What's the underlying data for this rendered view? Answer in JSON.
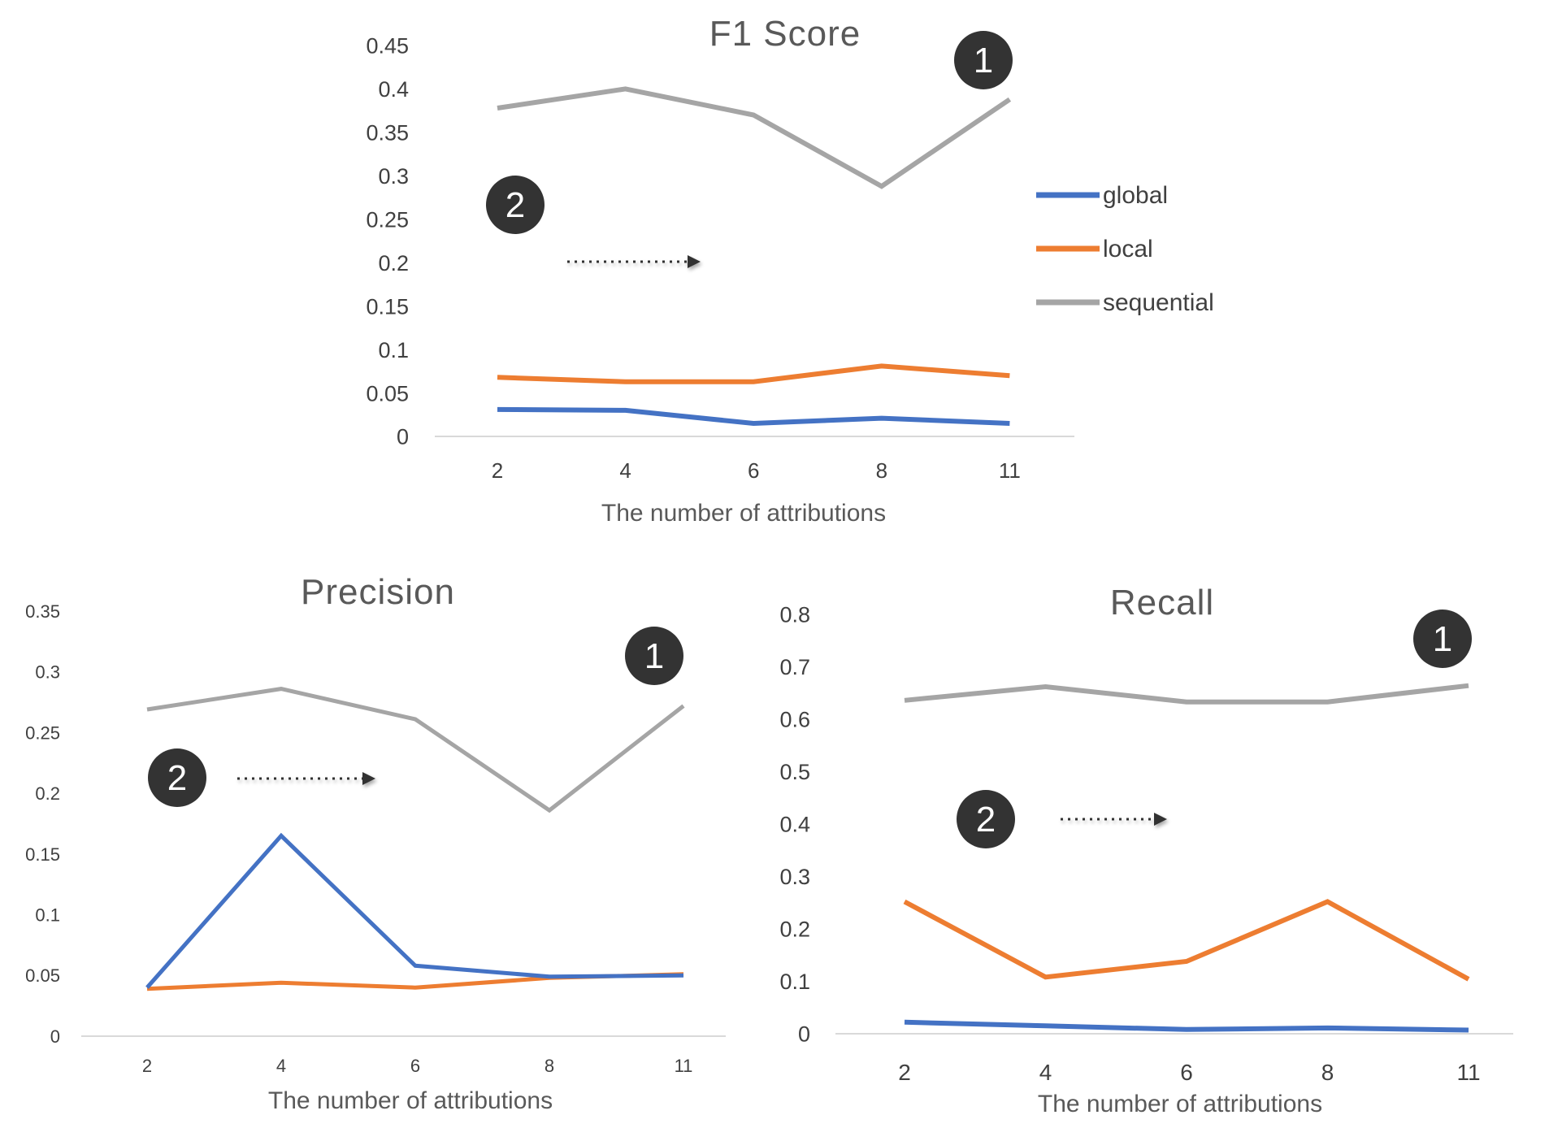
{
  "colors": {
    "global": "#4472C4",
    "local": "#ED7D31",
    "sequential": "#A5A5A5",
    "axis": "#D9D9D9",
    "badge": "#333333"
  },
  "legend": {
    "items": [
      {
        "label": "global",
        "color": "#4472C4"
      },
      {
        "label": "local",
        "color": "#ED7D31"
      },
      {
        "label": "sequential",
        "color": "#A5A5A5"
      }
    ]
  },
  "chart_data": [
    {
      "type": "line",
      "title": "F1 Score",
      "xlabel": "The number of attributions",
      "ylabel": "",
      "categories": [
        "2",
        "4",
        "6",
        "8",
        "11"
      ],
      "ylim": [
        0,
        0.45
      ],
      "y_ticks": [
        "0",
        "0.05",
        "0.1",
        "0.15",
        "0.2",
        "0.25",
        "0.3",
        "0.35",
        "0.4",
        "0.45"
      ],
      "series": [
        {
          "name": "global",
          "values": [
            0.031,
            0.03,
            0.015,
            0.021,
            0.015
          ]
        },
        {
          "name": "local",
          "values": [
            0.068,
            0.063,
            0.063,
            0.081,
            0.07
          ]
        },
        {
          "name": "sequential",
          "values": [
            0.378,
            0.4,
            0.37,
            0.288,
            0.388
          ]
        }
      ],
      "grid": false,
      "legend": "right",
      "badges": [
        "1",
        "2"
      ]
    },
    {
      "type": "line",
      "title": "Precision",
      "xlabel": "The number of attributions",
      "ylabel": "",
      "categories": [
        "2",
        "4",
        "6",
        "8",
        "11"
      ],
      "ylim": [
        0,
        0.35
      ],
      "y_ticks": [
        "0",
        "0.05",
        "0.1",
        "0.15",
        "0.2",
        "0.25",
        "0.3",
        "0.35"
      ],
      "series": [
        {
          "name": "global",
          "values": [
            0.04,
            0.165,
            0.058,
            0.049,
            0.05
          ]
        },
        {
          "name": "local",
          "values": [
            0.039,
            0.044,
            0.04,
            0.048,
            0.051
          ]
        },
        {
          "name": "sequential",
          "values": [
            0.269,
            0.286,
            0.261,
            0.186,
            0.272
          ]
        }
      ],
      "grid": false,
      "badges": [
        "1",
        "2"
      ]
    },
    {
      "type": "line",
      "title": "Recall",
      "xlabel": "The number of attributions",
      "ylabel": "",
      "categories": [
        "2",
        "4",
        "6",
        "8",
        "11"
      ],
      "ylim": [
        0,
        0.8
      ],
      "y_ticks": [
        "0",
        "0.1",
        "0.2",
        "0.3",
        "0.4",
        "0.5",
        "0.6",
        "0.7",
        "0.8"
      ],
      "series": [
        {
          "name": "global",
          "values": [
            0.022,
            0.015,
            0.008,
            0.011,
            0.007
          ]
        },
        {
          "name": "local",
          "values": [
            0.252,
            0.108,
            0.138,
            0.252,
            0.104
          ]
        },
        {
          "name": "sequential",
          "values": [
            0.636,
            0.662,
            0.633,
            0.633,
            0.664
          ]
        }
      ],
      "grid": false,
      "badges": [
        "1",
        "2"
      ]
    }
  ]
}
